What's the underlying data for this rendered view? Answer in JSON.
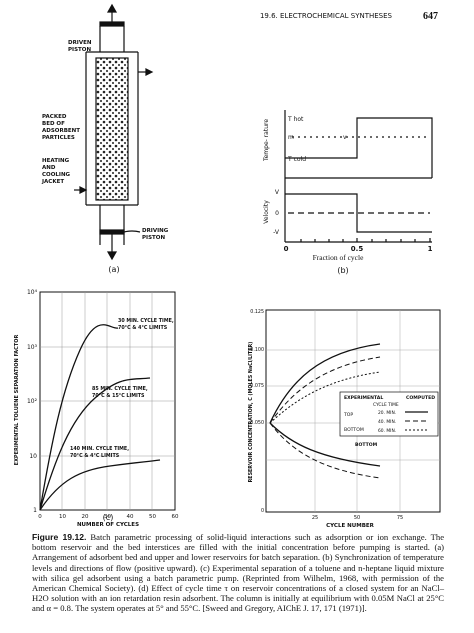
{
  "header": {
    "section": "19.6. ELECTROCHEMICAL SYNTHESES",
    "page": "647"
  },
  "figure": {
    "panel_a": {
      "driven_piston": [
        "DRIVEN",
        "PISTON"
      ],
      "packed_bed": [
        "PACKED",
        "BED OF",
        "ADSORBENT",
        "PARTICLES"
      ],
      "jacket": [
        "HEATING",
        "AND",
        "COOLING",
        "JACKET"
      ],
      "driving_piston": [
        "DRIVING",
        "PISTON"
      ],
      "label": "(a)"
    },
    "panel_b": {
      "y_label_top": "Tempe- rature",
      "t_hot": "T hot",
      "m": "m",
      "v_mark": "v",
      "t_cold": "T cold",
      "y_label_bottom": "Velocity",
      "v_levels": [
        "V",
        "0",
        "-V"
      ],
      "x_ticks": [
        "0",
        "0.5",
        "1"
      ],
      "x_label": "Fraction of cycle",
      "label": "(b)"
    },
    "panel_c": {
      "y_label": "EXPERIMENTAL TOLUENE SEPARATION FACTOR",
      "y_ticks": [
        "10⁴",
        "10³",
        "10²",
        "10",
        "1"
      ],
      "x_ticks": [
        "0",
        "10",
        "20",
        "30",
        "40",
        "50",
        "60"
      ],
      "x_label": "NUMBER OF CYCLES",
      "curves": [
        [
          "30 MIN. CYCLE TIME,",
          "70°C & 4°C LIMITS"
        ],
        [
          "85 MIN. CYCLE TIME,",
          "70°C & 15°C LIMITS"
        ],
        [
          "140 MIN. CYCLE TIME,",
          "70°C & 4°C LIMITS"
        ]
      ],
      "label": "(c)"
    },
    "panel_d": {
      "y_label": "RESERVOIR CONCENTRATION, C (MOLES NaCl/LITER)",
      "y_ticks": [
        "0.125",
        "0.100",
        "0.075",
        "0.050",
        "0"
      ],
      "x_ticks": [
        "25",
        "50",
        "75"
      ],
      "x_label": "CYCLE NUMBER",
      "legend": {
        "experimental": "EXPERIMENTAL",
        "computed": "COMPUTED",
        "cycle_time": "CYCLE TIME",
        "top": "TOP",
        "bottom": "BOTTOM",
        "rows": [
          "20. MIN.",
          "40. MIN.",
          "60. MIN."
        ]
      },
      "bottom_label": "BOTTOM",
      "label": "(d)"
    }
  },
  "caption": {
    "lead": "Figure 19.12.",
    "text": "Batch parametric processing of solid-liquid interactions such as adsorption or ion exchange. The bottom reservoir and the bed interstices are filled with the initial concentration before pumping is started. (a) Arrangement of adsorbent bed and upper and lower reservoirs for batch separation. (b) Synchronization of temperature levels and directions of flow (positive upward). (c) Experimental separation of a toluene and n-heptane liquid mixture with silica gel adsorbent using a batch parametric pump. (Reprinted from Wilhelm, 1968, with permission of the American Chemical Society). (d) Effect of cycle time τ on reservoir concentrations of a closed system for an NaCl–H2O solution with an ion retardation resin adsorbent. The column is initially at equilibrium with 0.05M NaCl at 25°C and α = 0.8. The system operates at 5° and 55°C. [Sweed and Gregory, AIChE J. 17, 171 (1971)]."
  }
}
